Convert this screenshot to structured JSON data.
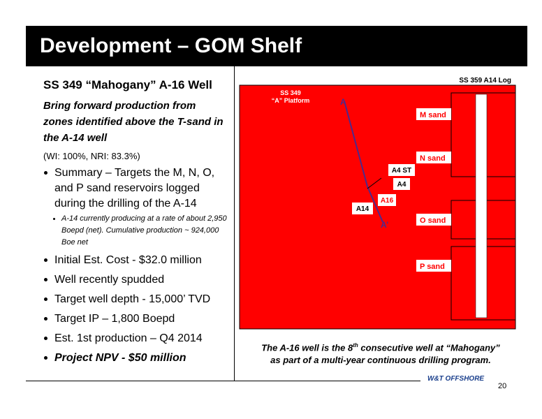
{
  "header": {
    "title": "Development – GOM Shelf"
  },
  "left": {
    "heading": "SS 349 “Mahogany” A-16 Well",
    "subheading": "Bring forward production from zones identified above the T-sand in the A-14 well",
    "interest": "(WI: 100%, NRI: 83.3%)",
    "bullets": [
      {
        "text": "Summary – Targets the M, N, O, and P sand reservoirs logged during the drilling of the A-14",
        "sub": "A-14 currently producing at a rate of about 2,950 Boepd (net). Cumulative production ~ 924,000 Boe net"
      },
      {
        "text": "Initial Est. Cost - $32.0 million"
      },
      {
        "text": "Well recently spudded"
      },
      {
        "text": "Target well depth - 15,000’ TVD"
      },
      {
        "text": "Target IP – 1,800 Boepd"
      },
      {
        "text": "Est. 1st production – Q4 2014"
      },
      {
        "text": "Project NPV - $50 million"
      }
    ]
  },
  "figure": {
    "log_title": "SS 359 A14 Log",
    "platform": [
      "SS 349",
      "“A” Platform"
    ],
    "section_start": "A",
    "section_end": "A’",
    "wells": [
      "A4 ST",
      "A4",
      "A16",
      "A14"
    ],
    "sands": [
      "M sand",
      "N sand",
      "O sand",
      "P sand"
    ]
  },
  "caption": {
    "line1_before": "The A-16 well is the 8",
    "line1_sup": "th",
    "line1_after": " consecutive well at “Mahogany”",
    "line2": "as part of a multi-year continuous drilling program."
  },
  "footer": {
    "logo": "W&T OFFSHORE",
    "page": "20"
  }
}
